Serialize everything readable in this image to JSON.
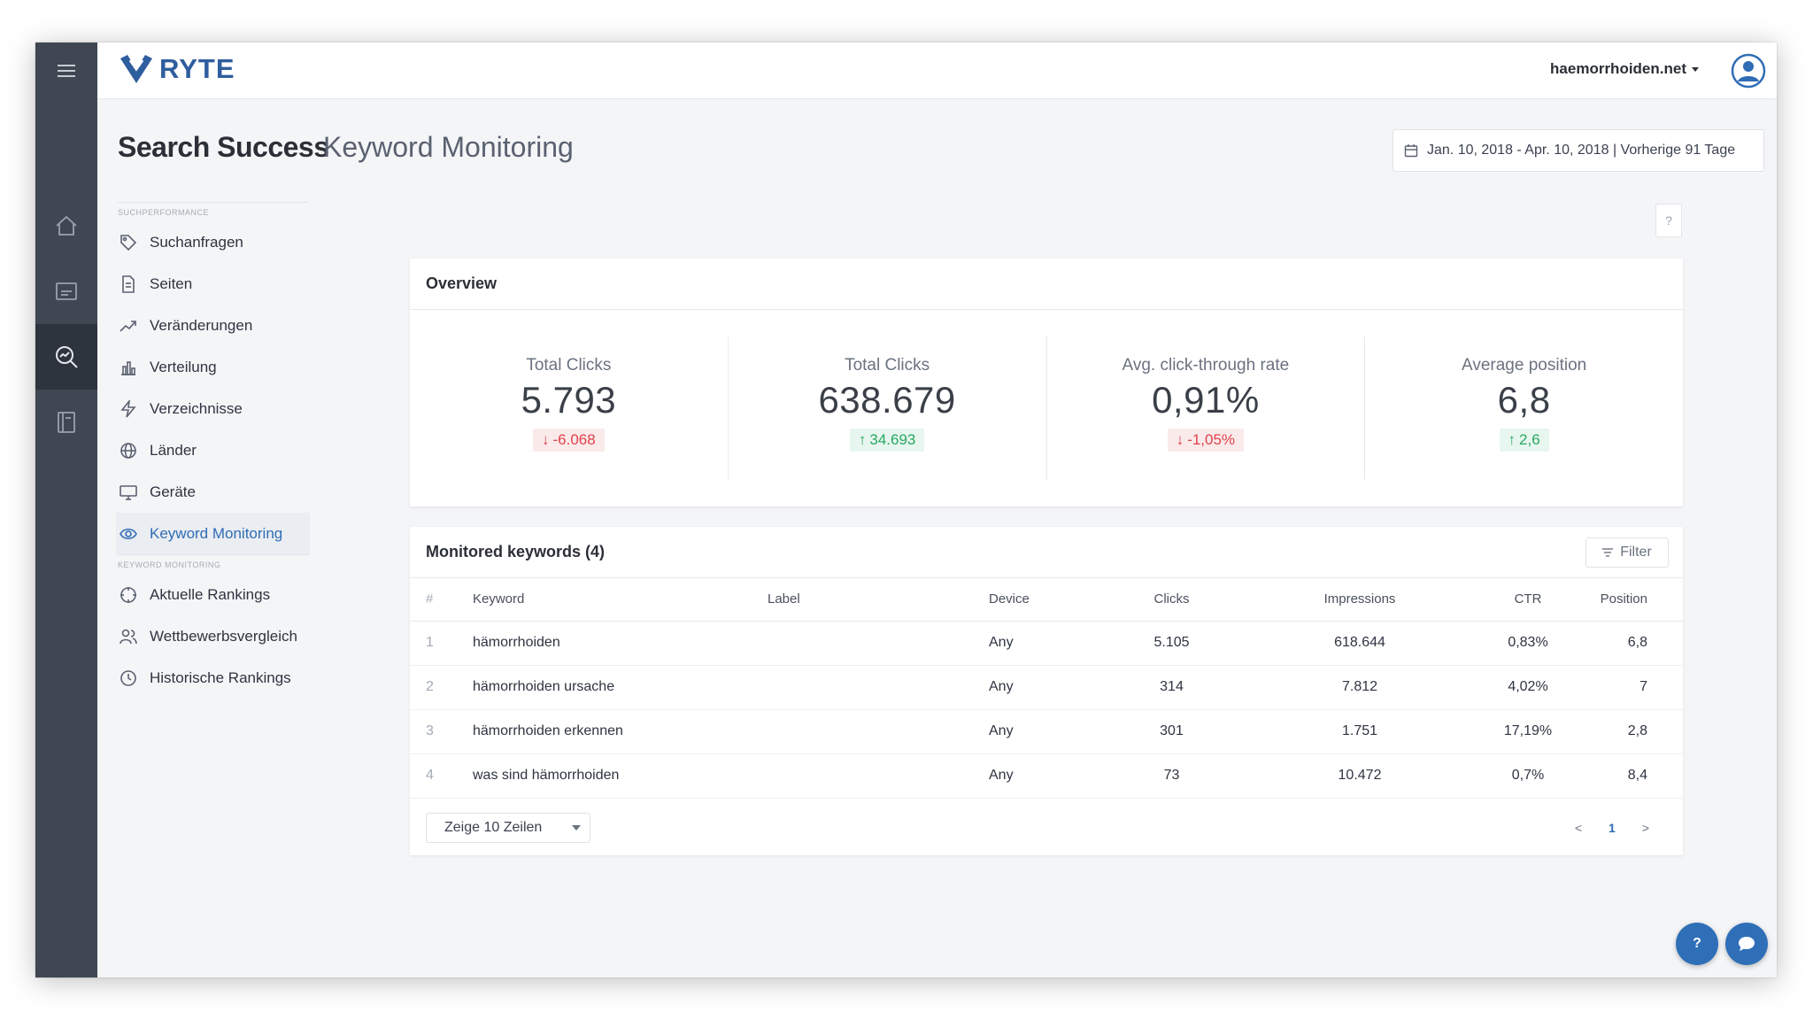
{
  "header": {
    "logo_text": "RYTE",
    "domain_selector": "haemorrhoiden.net",
    "page_title": "Search Success",
    "page_subtitle": "Keyword Monitoring",
    "date_range": "Jan. 10, 2018 - Apr. 10, 2018 | Vorherige 91 Tage",
    "help_mini": "?"
  },
  "sidebar": {
    "section1_label": "SUCHPERFORMANCE",
    "section1_items": [
      {
        "label": "Suchanfragen",
        "icon": "tag-icon"
      },
      {
        "label": "Seiten",
        "icon": "document-icon"
      },
      {
        "label": "Veränderungen",
        "icon": "trend-up-icon"
      },
      {
        "label": "Verteilung",
        "icon": "bar-chart-icon"
      },
      {
        "label": "Verzeichnisse",
        "icon": "lightning-icon"
      },
      {
        "label": "Länder",
        "icon": "globe-icon"
      },
      {
        "label": "Geräte",
        "icon": "monitor-icon"
      },
      {
        "label": "Keyword Monitoring",
        "icon": "eye-icon",
        "active": true
      }
    ],
    "section2_label": "KEYWORD MONITORING",
    "section2_items": [
      {
        "label": "Aktuelle Rankings",
        "icon": "target-icon"
      },
      {
        "label": "Wettbewerbsvergleich",
        "icon": "users-icon"
      },
      {
        "label": "Historische Rankings",
        "icon": "clock-icon"
      }
    ]
  },
  "overview": {
    "title": "Overview",
    "stats": [
      {
        "label": "Total Clicks",
        "value": "5.793",
        "delta": "-6.068",
        "direction": "down"
      },
      {
        "label": "Total Clicks",
        "value": "638.679",
        "delta": "34.693",
        "direction": "up"
      },
      {
        "label": "Avg. click-through rate",
        "value": "0,91%",
        "delta": "-1,05%",
        "direction": "down"
      },
      {
        "label": "Average position",
        "value": "6,8",
        "delta": "2,6",
        "direction": "up"
      }
    ]
  },
  "keywords": {
    "title": "Monitored keywords (4)",
    "filter_label": "Filter",
    "columns": [
      "#",
      "Keyword",
      "Label",
      "Device",
      "Clicks",
      "Impressions",
      "CTR",
      "Position"
    ],
    "rows": [
      {
        "num": "1",
        "keyword": "hämorrhoiden",
        "label": "",
        "device": "Any",
        "clicks": "5.105",
        "impressions": "618.644",
        "ctr": "0,83%",
        "position": "6,8"
      },
      {
        "num": "2",
        "keyword": "hämorrhoiden ursache",
        "label": "",
        "device": "Any",
        "clicks": "314",
        "impressions": "7.812",
        "ctr": "4,02%",
        "position": "7"
      },
      {
        "num": "3",
        "keyword": "hämorrhoiden erkennen",
        "label": "",
        "device": "Any",
        "clicks": "301",
        "impressions": "1.751",
        "ctr": "17,19%",
        "position": "2,8"
      },
      {
        "num": "4",
        "keyword": "was sind hämorrhoiden",
        "label": "",
        "device": "Any",
        "clicks": "73",
        "impressions": "10.472",
        "ctr": "0,7%",
        "position": "8,4"
      }
    ],
    "rows_select": "Zeige 10 Zeilen",
    "pager": {
      "prev": "<",
      "current": "1",
      "next": ">"
    }
  },
  "fabs": {
    "help": "?"
  },
  "colors": {
    "brand": "#2f5e9e",
    "accent": "#2f6db5",
    "negative": "#e0414b",
    "positive": "#27a863",
    "rail": "#3f4753"
  }
}
